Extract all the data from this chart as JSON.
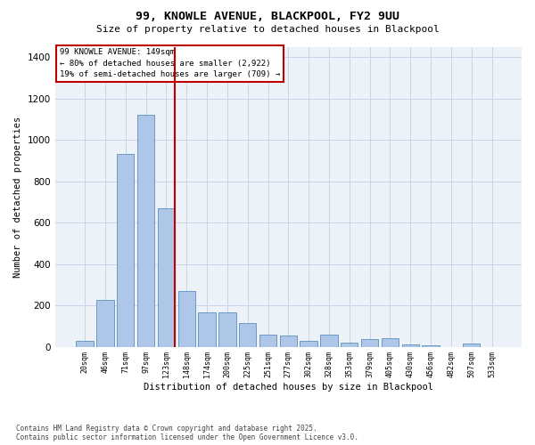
{
  "title": "99, KNOWLE AVENUE, BLACKPOOL, FY2 9UU",
  "subtitle": "Size of property relative to detached houses in Blackpool",
  "xlabel": "Distribution of detached houses by size in Blackpool",
  "ylabel": "Number of detached properties",
  "bar_labels": [
    "20sqm",
    "46sqm",
    "71sqm",
    "97sqm",
    "123sqm",
    "148sqm",
    "174sqm",
    "200sqm",
    "225sqm",
    "251sqm",
    "277sqm",
    "302sqm",
    "328sqm",
    "353sqm",
    "379sqm",
    "405sqm",
    "430sqm",
    "456sqm",
    "482sqm",
    "507sqm",
    "533sqm"
  ],
  "bar_values": [
    30,
    225,
    930,
    1120,
    670,
    270,
    165,
    165,
    115,
    60,
    55,
    30,
    60,
    20,
    35,
    40,
    10,
    5,
    0,
    15,
    0
  ],
  "bar_color": "#aec6e8",
  "bar_edge_color": "#5a8fc0",
  "vline_x_index": 4,
  "vline_color": "#bb0000",
  "annotation_text": "99 KNOWLE AVENUE: 149sqm\n← 80% of detached houses are smaller (2,922)\n19% of semi-detached houses are larger (709) →",
  "annotation_box_edgecolor": "#bb0000",
  "ylim": [
    0,
    1450
  ],
  "yticks": [
    0,
    200,
    400,
    600,
    800,
    1000,
    1200,
    1400
  ],
  "grid_color": "#c8d4e8",
  "bg_color": "#edf2f8",
  "footer": "Contains HM Land Registry data © Crown copyright and database right 2025.\nContains public sector information licensed under the Open Government Licence v3.0."
}
